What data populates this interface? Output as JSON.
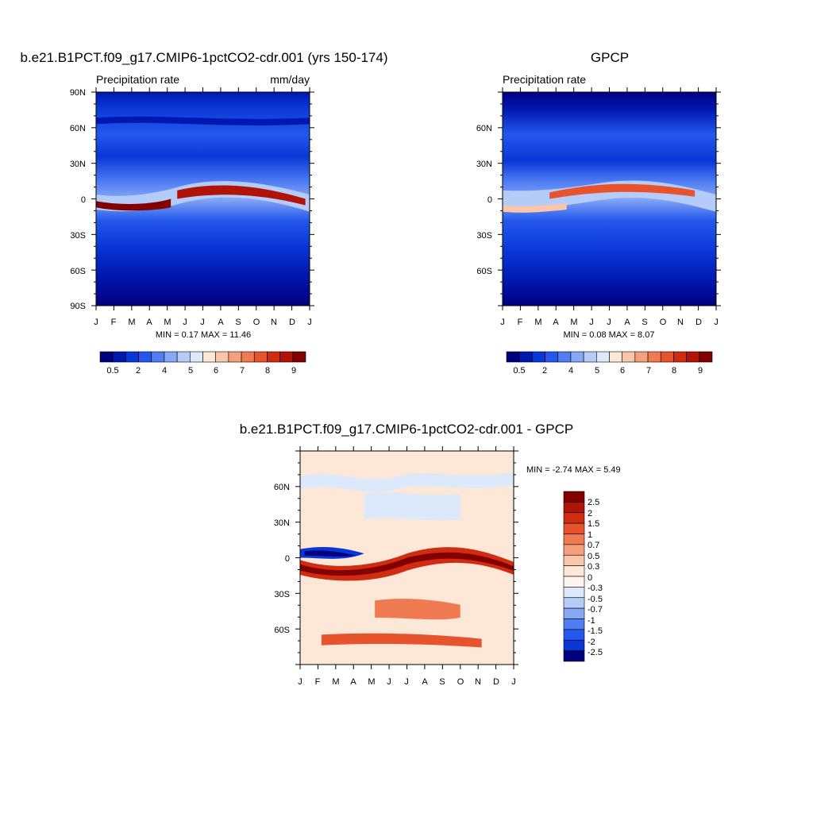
{
  "chart_data": [
    {
      "type": "heatmap",
      "title": "b.e21.B1PCT.f09_g17.CMIP6-1pctCO2-cdr.001 (yrs 150-174)",
      "left_label": "Precipitation rate",
      "right_label": "mm/day",
      "x_tick_labels": [
        "J",
        "F",
        "M",
        "A",
        "M",
        "J",
        "J",
        "A",
        "S",
        "O",
        "N",
        "D",
        "J"
      ],
      "y_tick_labels": [
        "90N",
        "60N",
        "30N",
        "0",
        "30S",
        "60S",
        "90S"
      ],
      "ylim": [
        -90,
        90
      ],
      "stats_text": "MIN =   0.17 MAX =   11.46",
      "min": 0.17,
      "max": 11.46,
      "levels": [
        "0.5",
        "2",
        "4",
        "5",
        "6",
        "7",
        "8",
        "9"
      ],
      "colors": [
        "#00007f",
        "#0018b0",
        "#0a36d6",
        "#2458ec",
        "#4f7df2",
        "#86a8f5",
        "#b6ccf8",
        "#dce9fb",
        "#fde8d8",
        "#f9c6ab",
        "#f69f7b",
        "#f07a52",
        "#e7532c",
        "#d02c12",
        "#b01408",
        "#820000"
      ]
    },
    {
      "type": "heatmap",
      "title": "GPCP",
      "left_label": "Precipitation rate",
      "x_tick_labels": [
        "J",
        "F",
        "M",
        "A",
        "M",
        "J",
        "J",
        "A",
        "S",
        "O",
        "N",
        "D",
        "J"
      ],
      "y_tick_labels": [
        "60N",
        "30N",
        "0",
        "30S",
        "60S"
      ],
      "ylim": [
        -90,
        90
      ],
      "stats_text": "MIN =   0.08 MAX =   8.07",
      "min": 0.08,
      "max": 8.07,
      "levels": [
        "0.5",
        "2",
        "4",
        "5",
        "6",
        "7",
        "8",
        "9"
      ],
      "colors": [
        "#00007f",
        "#0018b0",
        "#0a36d6",
        "#2458ec",
        "#4f7df2",
        "#86a8f5",
        "#b6ccf8",
        "#dce9fb",
        "#fde8d8",
        "#f9c6ab",
        "#f69f7b",
        "#f07a52",
        "#e7532c",
        "#d02c12",
        "#b01408",
        "#820000"
      ]
    },
    {
      "type": "heatmap",
      "title": "b.e21.B1PCT.f09_g17.CMIP6-1pctCO2-cdr.001 - GPCP",
      "x_tick_labels": [
        "J",
        "F",
        "M",
        "A",
        "M",
        "J",
        "J",
        "A",
        "S",
        "O",
        "N",
        "D",
        "J"
      ],
      "y_tick_labels": [
        "60N",
        "30N",
        "0",
        "30S",
        "60S"
      ],
      "ylim": [
        -90,
        90
      ],
      "stats_text": "MIN =  -2.74 MAX =   5.49",
      "min": -2.74,
      "max": 5.49,
      "levels": [
        "2.5",
        "2",
        "1.5",
        "1",
        "0.7",
        "0.5",
        "0.3",
        "0",
        "-0.3",
        "-0.5",
        "-0.7",
        "-1",
        "-1.5",
        "-2",
        "-2.5"
      ],
      "colors": [
        "#820000",
        "#b01408",
        "#d02c12",
        "#e7532c",
        "#f07a52",
        "#f69f7b",
        "#f9c6ab",
        "#fde8d8",
        "#fef6ee",
        "#dce9fb",
        "#b6ccf8",
        "#86a8f5",
        "#4f7df2",
        "#2458ec",
        "#0a36d6",
        "#00007f"
      ]
    }
  ]
}
